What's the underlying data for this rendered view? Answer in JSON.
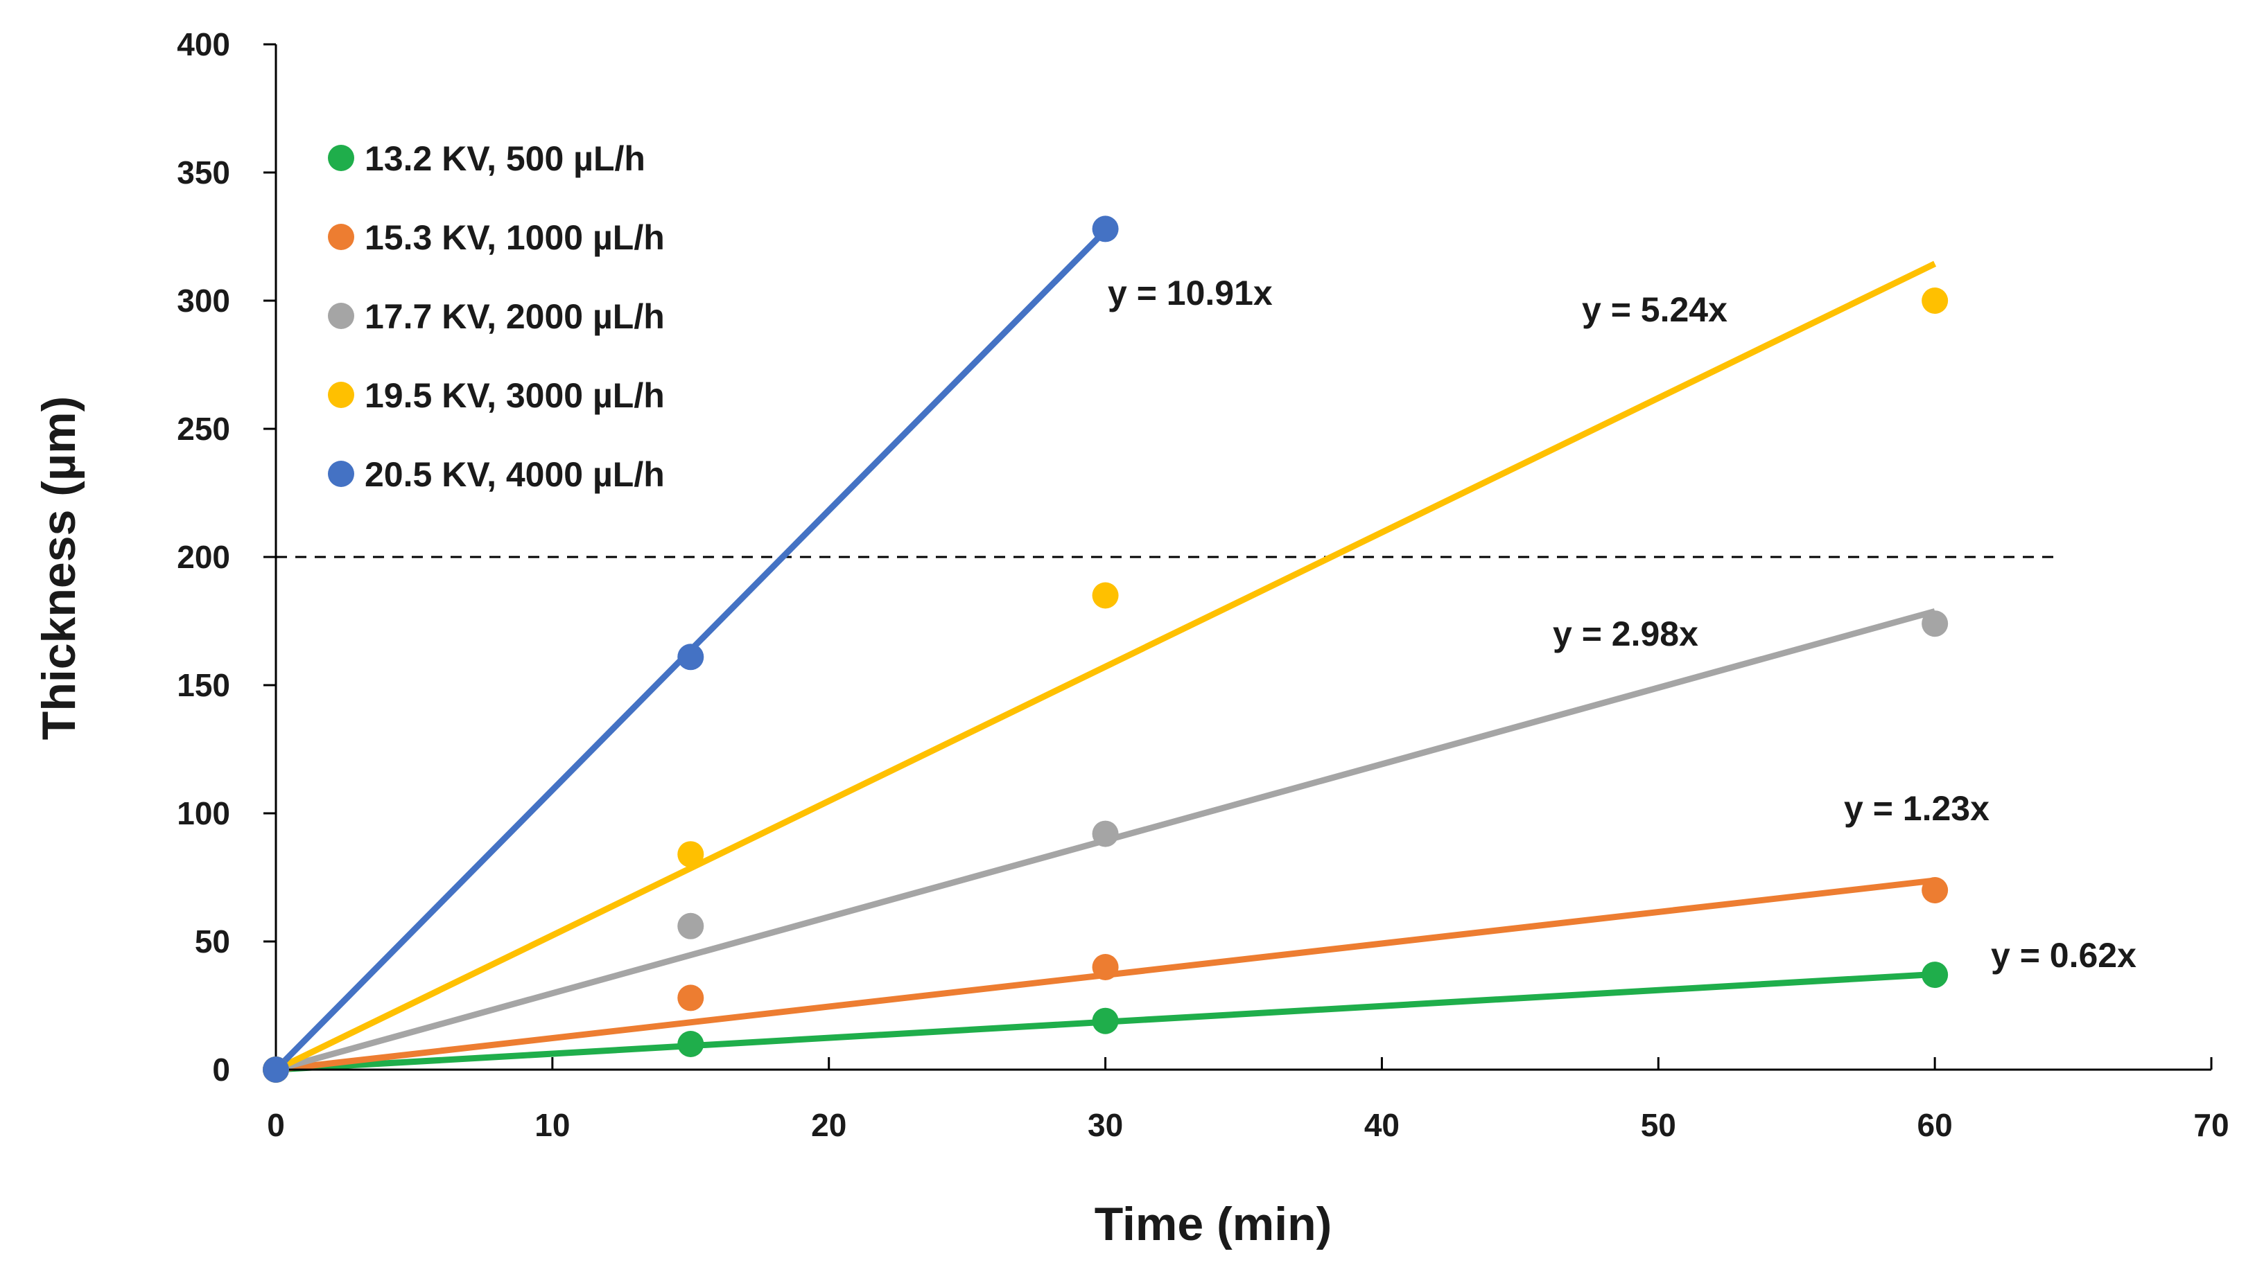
{
  "chart_data": {
    "type": "scatter",
    "title": "",
    "xlabel": "Time (min)",
    "ylabel": "Thickness (µm)",
    "xlim": [
      0,
      70
    ],
    "ylim": [
      0,
      400
    ],
    "x_ticks": [
      0,
      10,
      20,
      30,
      40,
      50,
      60,
      70
    ],
    "y_ticks": [
      0,
      50,
      100,
      150,
      200,
      250,
      300,
      350,
      400
    ],
    "grid": false,
    "legend_position": "top-left",
    "reference_line": {
      "y": 200,
      "x_range": [
        0,
        64.5
      ],
      "style": "dashed",
      "color": "#000000"
    },
    "series": [
      {
        "name": "13.2 KV, 500 µL/h",
        "color": "#1fae4b",
        "x": [
          0,
          15,
          30,
          60
        ],
        "y": [
          0,
          10,
          19,
          37
        ],
        "fit": {
          "slope": 0.62,
          "x_end": 60,
          "label": "y = 0.62x"
        }
      },
      {
        "name": "15.3 KV, 1000 µL/h",
        "color": "#ed7d31",
        "x": [
          0,
          15,
          30,
          60
        ],
        "y": [
          0,
          28,
          40,
          70
        ],
        "fit": {
          "slope": 1.23,
          "x_end": 60,
          "label": "y = 1.23x"
        }
      },
      {
        "name": "17.7 KV, 2000 µL/h",
        "color": "#a5a5a5",
        "x": [
          0,
          15,
          30,
          60
        ],
        "y": [
          0,
          56,
          92,
          174
        ],
        "fit": {
          "slope": 2.98,
          "x_end": 60,
          "label": "y = 2.98x"
        }
      },
      {
        "name": "19.5 KV, 3000 µL/h",
        "color": "#ffc000",
        "x": [
          0,
          15,
          30,
          60
        ],
        "y": [
          0,
          84,
          185,
          300
        ],
        "fit": {
          "slope": 5.24,
          "x_end": 60,
          "label": "y = 5.24x"
        }
      },
      {
        "name": "20.5 KV, 4000 µL/h",
        "color": "#4472c4",
        "x": [
          0,
          15,
          30
        ],
        "y": [
          0,
          161,
          328
        ],
        "fit": {
          "slope": 10.91,
          "x_end": 30,
          "label": "y = 10.91x"
        }
      }
    ]
  }
}
